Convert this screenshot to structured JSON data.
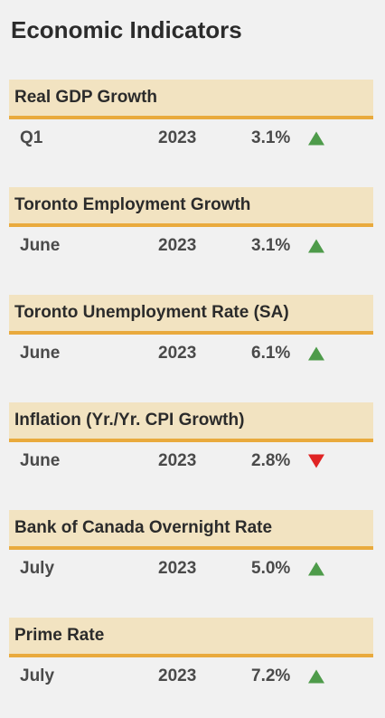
{
  "title": "Economic Indicators",
  "colors": {
    "header_bg": "#f2e3c1",
    "header_underline": "#e9aa3d",
    "up": "#4e9b4a",
    "down": "#e02424"
  },
  "indicators": [
    {
      "name": "Real GDP Growth",
      "period": "Q1",
      "year": "2023",
      "value": "3.1%",
      "trend": "up",
      "trend_icon": "triangle-up-icon"
    },
    {
      "name": "Toronto Employment Growth",
      "period": "June",
      "year": "2023",
      "value": "3.1%",
      "trend": "up",
      "trend_icon": "triangle-up-icon"
    },
    {
      "name": "Toronto Unemployment Rate (SA)",
      "period": "June",
      "year": "2023",
      "value": "6.1%",
      "trend": "up",
      "trend_icon": "triangle-up-icon"
    },
    {
      "name": "Inflation (Yr./Yr. CPI Growth)",
      "period": "June",
      "year": "2023",
      "value": "2.8%",
      "trend": "down",
      "trend_icon": "triangle-down-icon"
    },
    {
      "name": "Bank of Canada Overnight Rate",
      "period": "July",
      "year": "2023",
      "value": "5.0%",
      "trend": "up",
      "trend_icon": "triangle-up-icon"
    },
    {
      "name": "Prime Rate",
      "period": "July",
      "year": "2023",
      "value": "7.2%",
      "trend": "up",
      "trend_icon": "triangle-up-icon"
    }
  ]
}
